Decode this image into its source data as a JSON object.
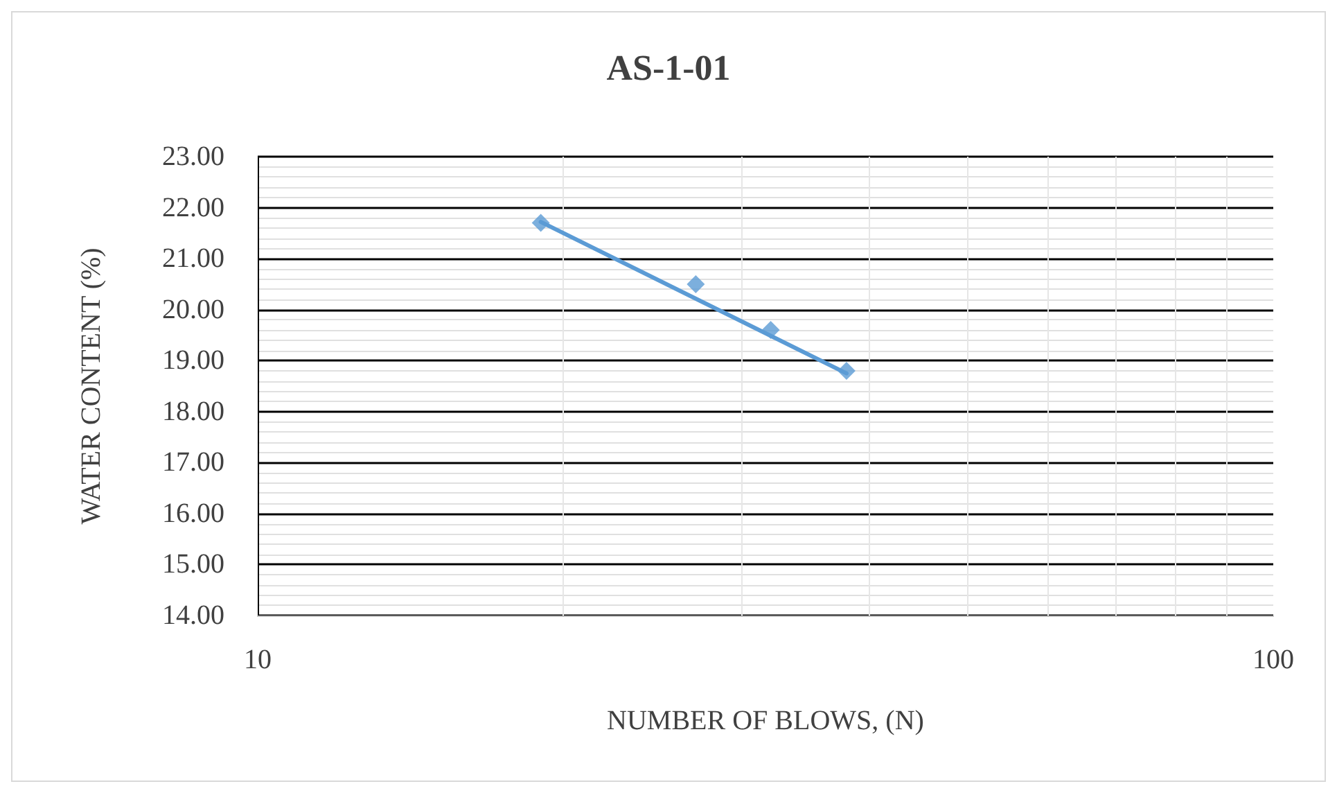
{
  "chart_data": {
    "type": "scatter",
    "title": "AS-1-01",
    "xlabel": "NUMBER OF BLOWS, (N)",
    "ylabel": "WATER CONTENT (%)",
    "series": [
      {
        "color": "#5b9bd5",
        "x": [
          19,
          27,
          32,
          38
        ],
        "values": [
          21.7,
          20.5,
          19.6,
          18.8
        ],
        "marker": "diamond"
      },
      {
        "type": "line",
        "color": "#5b9bd5",
        "x": [
          19,
          38
        ],
        "values": [
          21.72,
          18.75
        ],
        "marker": "none",
        "line_style": "solid"
      }
    ],
    "log": "x",
    "xlim": [
      10,
      100
    ],
    "xticks": [
      10,
      100
    ],
    "ylim": [
      14,
      23
    ],
    "yticks": [
      {
        "value": 14,
        "label": "14.00"
      },
      {
        "value": 15,
        "label": "15.00"
      },
      {
        "value": 16,
        "label": "16.00"
      },
      {
        "value": 17,
        "label": "17.00"
      },
      {
        "value": 18,
        "label": "18.00"
      },
      {
        "value": 19,
        "label": "19.00"
      },
      {
        "value": 20,
        "label": "20.00"
      },
      {
        "value": 21,
        "label": "21.00"
      },
      {
        "value": 22,
        "label": "22.00"
      },
      {
        "value": 23,
        "label": "23.00"
      }
    ],
    "grid": true
  }
}
